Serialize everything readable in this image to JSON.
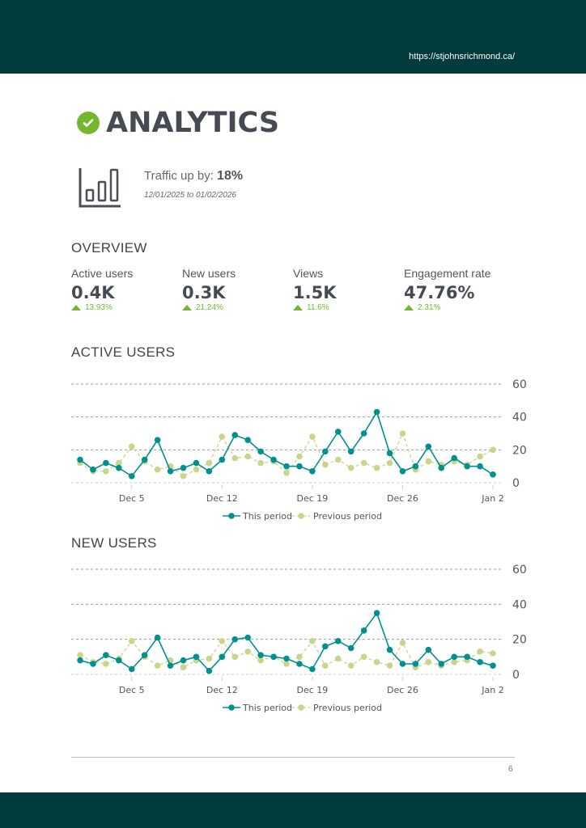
{
  "header": {
    "url": "https://stjohnsrichmond.ca/"
  },
  "title": "ANALYTICS",
  "traffic": {
    "label": "Traffic up by:",
    "value": "18%",
    "range": "12/01/2025 to 01/02/2026"
  },
  "overview": {
    "heading": "OVERVIEW",
    "kpis": [
      {
        "label": "Active users",
        "value": "0.4K",
        "change": "13.93%"
      },
      {
        "label": "New users",
        "value": "0.3K",
        "change": "21.24%"
      },
      {
        "label": "Views",
        "value": "1.5K",
        "change": "11.6%"
      },
      {
        "label": "Engagement rate",
        "value": "47.76%",
        "change": "2.31%"
      }
    ]
  },
  "colors": {
    "header": "#013b3b",
    "accent": "#74b72e",
    "this_period": "#00918f",
    "previous_period": "#c9d68a"
  },
  "chart_data": [
    {
      "type": "line",
      "title": "ACTIVE USERS",
      "x_ticks": [
        {
          "index": 4,
          "label": "Dec 5"
        },
        {
          "index": 11,
          "label": "Dec 12"
        },
        {
          "index": 18,
          "label": "Dec 19"
        },
        {
          "index": 25,
          "label": "Dec 26"
        },
        {
          "index": 32,
          "label": "Jan 2"
        }
      ],
      "y_ticks": [
        0,
        20,
        40,
        60
      ],
      "ylim": [
        0,
        60
      ],
      "legend": "bottom",
      "series": [
        {
          "name": "This period",
          "values": [
            14,
            8,
            12,
            9,
            4,
            14,
            26,
            7,
            9,
            12,
            7,
            14,
            29,
            26,
            19,
            14,
            10,
            10,
            7,
            19,
            31,
            19,
            30,
            43,
            18,
            7,
            10,
            22,
            9,
            15,
            10,
            10,
            5
          ]
        },
        {
          "name": "Previous period",
          "values": [
            12,
            7,
            7,
            12,
            22,
            13,
            8,
            10,
            4,
            8,
            12,
            28,
            15,
            16,
            12,
            13,
            6,
            16,
            28,
            11,
            14,
            9,
            12,
            9,
            12,
            30,
            8,
            13,
            11,
            13,
            11,
            16,
            20
          ]
        }
      ]
    },
    {
      "type": "line",
      "title": "NEW USERS",
      "x_ticks": [
        {
          "index": 4,
          "label": "Dec 5"
        },
        {
          "index": 11,
          "label": "Dec 12"
        },
        {
          "index": 18,
          "label": "Dec 19"
        },
        {
          "index": 25,
          "label": "Dec 26"
        },
        {
          "index": 32,
          "label": "Jan 2"
        }
      ],
      "y_ticks": [
        0,
        20,
        40,
        60
      ],
      "ylim": [
        0,
        60
      ],
      "legend": "bottom",
      "series": [
        {
          "name": "This period",
          "values": [
            8,
            6,
            11,
            8,
            3,
            11,
            21,
            5,
            8,
            10,
            2,
            10,
            20,
            21,
            11,
            10,
            9,
            6,
            3,
            16,
            19,
            15,
            25,
            35,
            14,
            6,
            6,
            14,
            6,
            10,
            10,
            7,
            5
          ]
        },
        {
          "name": "Previous period",
          "values": [
            11,
            7,
            6,
            9,
            19,
            10,
            5,
            8,
            4,
            8,
            9,
            19,
            10,
            13,
            8,
            10,
            6,
            10,
            19,
            5,
            9,
            5,
            10,
            7,
            5,
            18,
            4,
            7,
            5,
            7,
            8,
            13,
            12
          ]
        }
      ]
    }
  ],
  "footer": {
    "page": "6"
  }
}
